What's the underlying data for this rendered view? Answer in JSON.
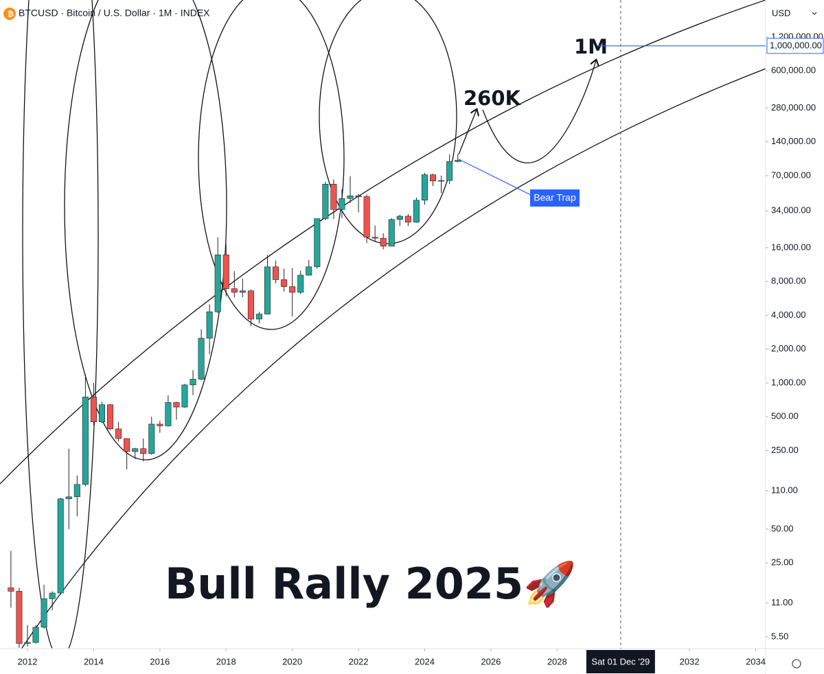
{
  "chart_data": {
    "type": "candlestick",
    "title": "BTCUSD · Bitcoin / U.S. Dollar · 1M · INDEX",
    "currency": "USD",
    "log_scale": true,
    "up_color": "#26a69a",
    "down_color": "#ef5350",
    "x": [
      2011.5,
      2011.75,
      2012.0,
      2012.25,
      2012.5,
      2012.75,
      2013.0,
      2013.25,
      2013.5,
      2013.75,
      2014.0,
      2014.25,
      2014.5,
      2014.75,
      2015.0,
      2015.25,
      2015.5,
      2015.75,
      2016.0,
      2016.25,
      2016.5,
      2016.75,
      2017.0,
      2017.25,
      2017.5,
      2017.75,
      2018.0,
      2018.25,
      2018.5,
      2018.75,
      2019.0,
      2019.25,
      2019.5,
      2019.75,
      2020.0,
      2020.25,
      2020.5,
      2020.75,
      2021.0,
      2021.25,
      2021.5,
      2021.75,
      2022.0,
      2022.25,
      2022.5,
      2022.75,
      2023.0,
      2023.25,
      2023.5,
      2023.75,
      2024.0,
      2024.25,
      2024.5,
      2024.75,
      2025.0
    ],
    "open": [
      15,
      14,
      4.8,
      4.9,
      6.7,
      12,
      13.5,
      93,
      97,
      125,
      750,
      450,
      640,
      390,
      320,
      245,
      260,
      235,
      430,
      415,
      670,
      610,
      960,
      1080,
      2500,
      4300,
      13800,
      6900,
      6400,
      6600,
      3700,
      4100,
      10800,
      8300,
      7200,
      6400,
      9100,
      10800,
      29000,
      58800,
      35000,
      43800,
      46300,
      45500,
      19800,
      19400,
      16500,
      28500,
      30500,
      27000,
      42300,
      71300,
      62700,
      63300,
      93400
    ],
    "high": [
      32,
      15,
      7,
      7,
      16,
      14,
      95,
      260,
      150,
      1200,
      1000,
      680,
      650,
      450,
      320,
      265,
      320,
      500,
      460,
      780,
      680,
      980,
      1300,
      3000,
      5000,
      19800,
      17200,
      9900,
      8500,
      6800,
      4300,
      13800,
      12300,
      10400,
      10500,
      10000,
      12400,
      29000,
      61700,
      64800,
      52900,
      69000,
      48200,
      47400,
      25200,
      21500,
      29200,
      31400,
      31800,
      44700,
      73800,
      72700,
      70000,
      108000,
      109000
    ],
    "low": [
      10,
      4.4,
      4.5,
      4.8,
      6.5,
      9.5,
      13,
      50,
      65,
      120,
      420,
      440,
      380,
      300,
      170,
      210,
      200,
      230,
      360,
      410,
      470,
      600,
      780,
      1060,
      1800,
      4200,
      5900,
      5800,
      5800,
      3200,
      3400,
      4100,
      7700,
      6500,
      3900,
      6200,
      9000,
      10400,
      28000,
      28800,
      29300,
      40000,
      33000,
      17600,
      18200,
      15500,
      16500,
      25000,
      24900,
      26600,
      38500,
      56500,
      49000,
      58900,
      92000
    ],
    "close": [
      14,
      4.8,
      4.9,
      6.7,
      12,
      13.5,
      93,
      97,
      125,
      750,
      450,
      640,
      390,
      320,
      245,
      260,
      235,
      430,
      415,
      670,
      610,
      960,
      1080,
      2500,
      4300,
      13800,
      6900,
      6400,
      6600,
      3700,
      4100,
      10800,
      8300,
      7200,
      6400,
      9100,
      10800,
      29000,
      58800,
      35000,
      43800,
      46300,
      45500,
      19800,
      19400,
      16500,
      28500,
      30500,
      27000,
      42300,
      71300,
      62700,
      63300,
      93400,
      96000
    ],
    "xlim": [
      2011.17,
      2034.3
    ],
    "xticks": [
      2012,
      2014,
      2016,
      2018,
      2020,
      2022,
      2024,
      2026,
      2028,
      2032,
      2034
    ],
    "ylim": [
      4.32,
      2560000
    ],
    "yticks": [
      {
        "value": 5.5,
        "label": "5.50"
      },
      {
        "value": 11,
        "label": "11.00"
      },
      {
        "value": 25,
        "label": "25.00"
      },
      {
        "value": 50,
        "label": "50.00"
      },
      {
        "value": 110,
        "label": "110.00"
      },
      {
        "value": 250,
        "label": "250.00"
      },
      {
        "value": 500,
        "label": "500.00"
      },
      {
        "value": 1000,
        "label": "1,000.00"
      },
      {
        "value": 2000,
        "label": "2,000.00"
      },
      {
        "value": 4000,
        "label": "4,000.00"
      },
      {
        "value": 8000,
        "label": "8,000.00"
      },
      {
        "value": 16000,
        "label": "16,000.00"
      },
      {
        "value": 34000,
        "label": "34,000.00"
      },
      {
        "value": 70000,
        "label": "70,000.00"
      },
      {
        "value": 140000,
        "label": "140,000.00"
      },
      {
        "value": 280000,
        "label": "280,000.00"
      },
      {
        "value": 600000,
        "label": "600,000.00"
      },
      {
        "value": 1200000,
        "label": "1,200,000.00"
      }
    ],
    "price_line": {
      "value": 1000000,
      "label": "1,000,000.00",
      "color": "#2962ff"
    },
    "crosshair": {
      "value": 2029.92,
      "label": "Sat 01 Dec '29"
    },
    "annotations": {
      "target_1": "260K",
      "target_2": "1M",
      "bear_trap": "Bear Trap",
      "headline": "Bull Rally 2025🚀"
    }
  }
}
